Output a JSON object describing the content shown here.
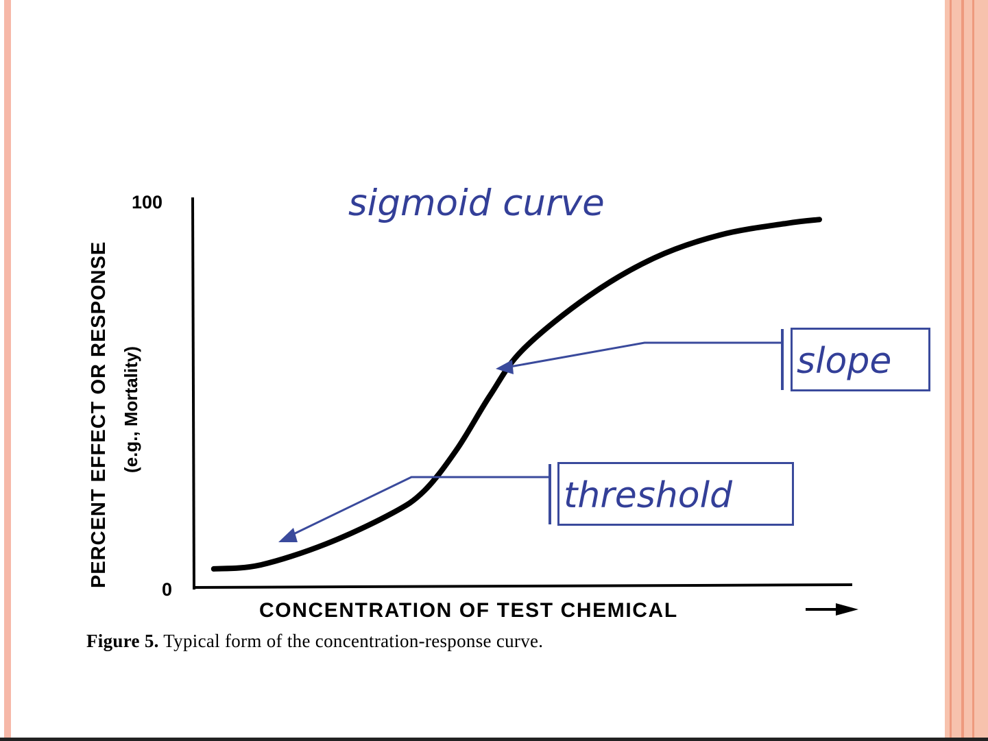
{
  "colors": {
    "annotation": "#333f98",
    "frame_left": "#f6b8a8",
    "frame_right": "#f2a488",
    "curve": "#000000"
  },
  "chart_data": {
    "type": "line",
    "title": "sigmoid curve",
    "xlabel": "CONCENTRATION OF TEST CHEMICAL",
    "ylabel": "PERCENT EFFECT OR RESPONSE",
    "ylabel_sub": "(e.g., Mortality)",
    "ylim": [
      0,
      100
    ],
    "y_ticks": [
      "0",
      "100"
    ],
    "x_ticks": [],
    "grid": false,
    "series": [
      {
        "x": [
          0.03,
          0.1,
          0.2,
          0.3,
          0.35,
          0.4,
          0.45,
          0.5,
          0.6,
          0.7,
          0.8,
          0.9,
          0.95
        ],
        "values": [
          4.5,
          5.5,
          11,
          19,
          25,
          36,
          50,
          62,
          76,
          86,
          92,
          95,
          96
        ]
      }
    ],
    "annotations": [
      {
        "text": "slope",
        "target_x": 0.46,
        "target_y": 57
      },
      {
        "text": "threshold",
        "target_x": 0.13,
        "target_y": 12
      }
    ]
  },
  "caption": {
    "label": "Figure 5.",
    "text": "Typical form of the concentration-response curve."
  }
}
